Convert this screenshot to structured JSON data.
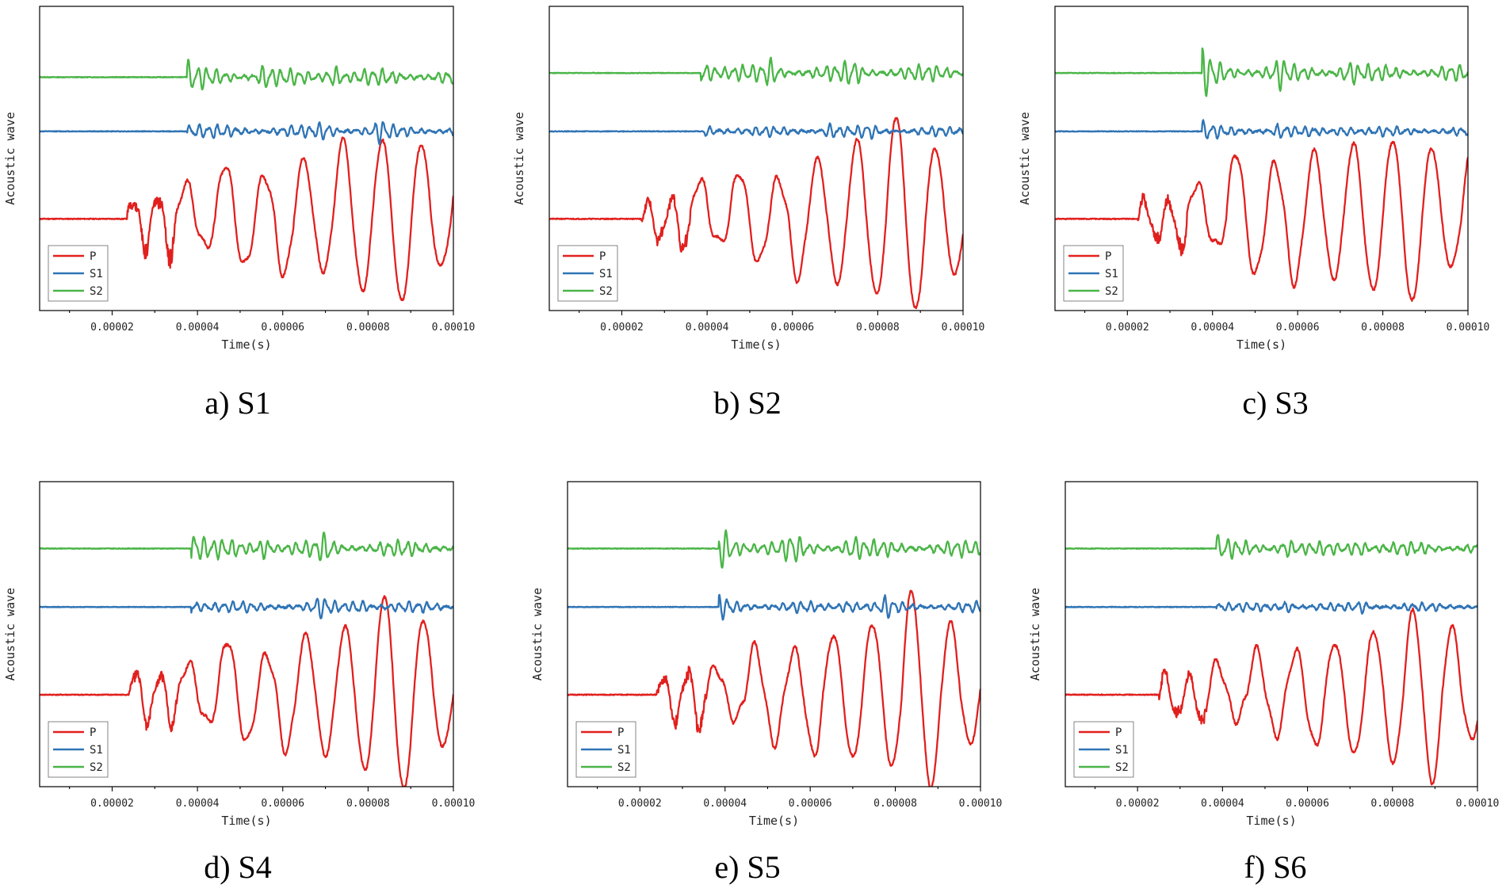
{
  "colors": {
    "P": "#e1201e",
    "S1": "#2f74b5",
    "S2": "#4bb548"
  },
  "chart_data": [
    {
      "id": "a",
      "caption": "a)  S1",
      "type": "line",
      "title": "",
      "xlabel": "Time(s)",
      "ylabel": "Acoustic wave",
      "xlim": [
        3e-06,
        0.0001
      ],
      "xticks": [
        2e-05,
        4e-05,
        6e-05,
        8e-05,
        0.0001
      ],
      "xtick_labels": [
        "0.00002",
        "0.00004",
        "0.00006",
        "0.00008",
        "0.00010"
      ],
      "legend": [
        "P",
        "S1",
        "S2"
      ],
      "legend_loc": "lower-left",
      "series": [
        {
          "name": "P",
          "onset": 2.35e-05,
          "baseline": -1.0,
          "amp": 0.55,
          "seed": 11,
          "spikes": [
            0.5,
            -0.8,
            0.6,
            -1.0
          ],
          "peaks": [
            0.45,
            -0.35,
            0.7,
            -0.6,
            0.55,
            -0.7,
            0.75,
            -0.65,
            1.0,
            -0.9,
            1.0,
            -1.05,
            0.95,
            -0.6,
            0.75,
            -0.55,
            0.6
          ]
        },
        {
          "name": "S1",
          "onset": 3.75e-05,
          "baseline": 0.05,
          "amp": 0.09,
          "seed": 12,
          "burst": 0.7,
          "late": [
            7e-05,
            8.3e-05
          ]
        },
        {
          "name": "S2",
          "onset": 3.75e-05,
          "baseline": 0.7,
          "amp": 0.12,
          "seed": 13,
          "burst": 1.1,
          "late": [
            5.6e-05,
            7.2e-05
          ]
        }
      ]
    },
    {
      "id": "b",
      "caption": "b)  S2",
      "type": "line",
      "title": "",
      "xlabel": "Time(s)",
      "ylabel": "Acoustic wave",
      "xlim": [
        3e-06,
        0.0001
      ],
      "xticks": [
        2e-05,
        4e-05,
        6e-05,
        8e-05,
        0.0001
      ],
      "xtick_labels": [
        "0.00002",
        "0.00004",
        "0.00006",
        "0.00008",
        "0.00010"
      ],
      "legend": [
        "P",
        "S1",
        "S2"
      ],
      "legend_loc": "lower-left",
      "series": [
        {
          "name": "P",
          "onset": 2.45e-05,
          "baseline": -1.0,
          "amp": 0.55,
          "seed": 21,
          "spikes": [
            0.4,
            -0.6,
            0.5,
            -0.9
          ],
          "peaks": [
            0.5,
            -0.3,
            0.6,
            -0.55,
            0.5,
            -0.75,
            0.75,
            -0.8,
            1.0,
            -0.95,
            1.3,
            -1.15,
            0.9,
            -0.7,
            0.7,
            -0.5,
            0.45
          ]
        },
        {
          "name": "S1",
          "onset": 3.9e-05,
          "baseline": 0.05,
          "amp": 0.07,
          "seed": 22,
          "burst": 0.8,
          "late": [
            6.9e-05,
            7.8e-05
          ]
        },
        {
          "name": "S2",
          "onset": 3.85e-05,
          "baseline": 0.75,
          "amp": 0.12,
          "seed": 23,
          "burst": 1.3,
          "late": [
            5.5e-05,
            7.4e-05
          ]
        }
      ]
    },
    {
      "id": "c",
      "caption": "c)  S3",
      "type": "line",
      "title": "",
      "xlabel": "Time(s)",
      "ylabel": "Acoustic wave",
      "xlim": [
        3e-06,
        0.0001
      ],
      "xticks": [
        2e-05,
        4e-05,
        6e-05,
        8e-05,
        0.0001
      ],
      "xtick_labels": [
        "0.00002",
        "0.00004",
        "0.00006",
        "0.00008",
        "0.00010"
      ],
      "legend": [
        "P",
        "S1",
        "S2"
      ],
      "legend_loc": "lower-left",
      "series": [
        {
          "name": "P",
          "onset": 2.25e-05,
          "baseline": -1.0,
          "amp": 0.55,
          "seed": 31,
          "spikes": [
            0.5,
            -0.6,
            0.4,
            -0.9
          ],
          "peaks": [
            0.45,
            -0.35,
            0.85,
            -0.7,
            0.7,
            -0.8,
            0.85,
            -0.75,
            0.95,
            -0.9,
            1.0,
            -1.05,
            0.9,
            -0.6,
            0.85,
            -0.5,
            0.4
          ]
        },
        {
          "name": "S1",
          "onset": 3.75e-05,
          "baseline": 0.05,
          "amp": 0.07,
          "seed": 32,
          "burst": 1.2,
          "late": [
            5.6e-05,
            7.1e-05
          ]
        },
        {
          "name": "S2",
          "onset": 3.75e-05,
          "baseline": 0.75,
          "amp": 0.12,
          "seed": 33,
          "burst": 2.2,
          "late": [
            5.6e-05,
            7.2e-05
          ]
        }
      ]
    },
    {
      "id": "d",
      "caption": "d)  S4",
      "type": "line",
      "title": "",
      "xlabel": "Time(s)",
      "ylabel": "Acoustic wave",
      "xlim": [
        3e-06,
        0.0001
      ],
      "xticks": [
        2e-05,
        4e-05,
        6e-05,
        8e-05,
        0.0001
      ],
      "xtick_labels": [
        "0.00002",
        "0.00004",
        "0.00006",
        "0.00008",
        "0.00010"
      ],
      "legend": [
        "P",
        "S1",
        "S2"
      ],
      "legend_loc": "lower-left",
      "series": [
        {
          "name": "P",
          "onset": 2.4e-05,
          "baseline": -1.0,
          "amp": 0.55,
          "seed": 41,
          "spikes": [
            0.6,
            -0.8,
            0.5,
            -0.8
          ],
          "peaks": [
            0.4,
            -0.35,
            0.7,
            -0.6,
            0.5,
            -0.7,
            0.75,
            -0.75,
            0.85,
            -0.95,
            1.25,
            -1.2,
            0.95,
            -0.65,
            0.75,
            -0.5,
            0.55
          ]
        },
        {
          "name": "S1",
          "onset": 3.85e-05,
          "baseline": 0.05,
          "amp": 0.08,
          "seed": 42,
          "burst": 1.0,
          "late": [
            6.9e-05,
            7.8e-05
          ]
        },
        {
          "name": "S2",
          "onset": 3.85e-05,
          "baseline": 0.75,
          "amp": 0.12,
          "seed": 43,
          "burst": 2.0,
          "late": [
            5.6e-05,
            7e-05
          ]
        }
      ]
    },
    {
      "id": "e",
      "caption": "e)  S5",
      "type": "line",
      "title": "",
      "xlabel": "Time(s)",
      "ylabel": "Acoustic wave",
      "xlim": [
        3e-06,
        0.0001
      ],
      "xticks": [
        2e-05,
        4e-05,
        6e-05,
        8e-05,
        0.0001
      ],
      "xtick_labels": [
        "0.00002",
        "0.00004",
        "0.00006",
        "0.00008",
        "0.00010"
      ],
      "legend": [
        "P",
        "S1",
        "S2"
      ],
      "legend_loc": "lower-left",
      "series": [
        {
          "name": "P",
          "onset": 2.4e-05,
          "baseline": -1.0,
          "amp": 0.55,
          "seed": 51,
          "spikes": [
            0.5,
            -0.7,
            0.6,
            -0.9
          ],
          "peaks": [
            0.35,
            -0.3,
            0.6,
            -0.6,
            0.55,
            -0.75,
            0.75,
            -0.8,
            0.9,
            -0.9,
            1.3,
            -1.15,
            0.9,
            -0.6,
            0.7,
            -0.55,
            0.45
          ]
        },
        {
          "name": "S1",
          "onset": 3.85e-05,
          "baseline": 0.05,
          "amp": 0.08,
          "seed": 52,
          "burst": 1.4,
          "late": [
            6.9e-05,
            7.8e-05
          ]
        },
        {
          "name": "S2",
          "onset": 3.85e-05,
          "baseline": 0.75,
          "amp": 0.12,
          "seed": 53,
          "burst": 2.4,
          "late": [
            5.6e-05,
            7e-05
          ]
        }
      ]
    },
    {
      "id": "f",
      "caption": "f)  S6",
      "type": "line",
      "title": "",
      "xlabel": "Time(s)",
      "ylabel": "Acoustic wave",
      "xlim": [
        3e-06,
        0.0001
      ],
      "xticks": [
        2e-05,
        4e-05,
        6e-05,
        8e-05,
        0.0001
      ],
      "xtick_labels": [
        "0.00002",
        "0.00004",
        "0.00006",
        "0.00008",
        "0.00010"
      ],
      "legend": [
        "P",
        "S1",
        "S2"
      ],
      "legend_loc": "lower-left",
      "series": [
        {
          "name": "P",
          "onset": 2.5e-05,
          "baseline": -1.0,
          "amp": 0.55,
          "seed": 61,
          "spikes": [
            0.5,
            -0.6,
            0.45,
            -0.8
          ],
          "peaks": [
            0.4,
            -0.3,
            0.55,
            -0.5,
            0.55,
            -0.65,
            0.65,
            -0.75,
            0.8,
            -0.85,
            1.05,
            -1.1,
            0.85,
            -0.55,
            0.7,
            -0.45,
            0.5
          ]
        },
        {
          "name": "S1",
          "onset": 3.85e-05,
          "baseline": 0.05,
          "amp": 0.06,
          "seed": 62,
          "burst": 0.7,
          "late": [
            5.5e-05,
            7.3e-05
          ]
        },
        {
          "name": "S2",
          "onset": 3.85e-05,
          "baseline": 0.75,
          "amp": 0.1,
          "seed": 63,
          "burst": 1.2,
          "late": [
            5.5e-05,
            7.2e-05
          ]
        }
      ]
    }
  ]
}
